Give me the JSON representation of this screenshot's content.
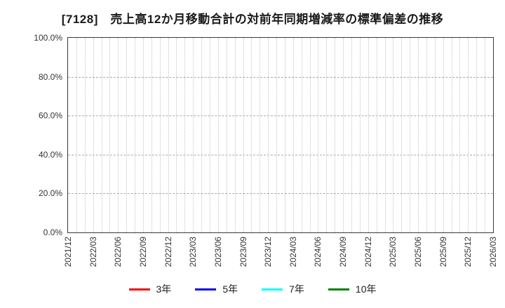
{
  "title": "[7128]　売上高12か月移動合計の対前年同期増減率の標準偏差の推移",
  "chart_data": {
    "type": "line",
    "title": "[7128]　売上高12か月移動合計の対前年同期増減率の標準偏差の推移",
    "x_tick_labels": [
      "2021/12",
      "2022/03",
      "2022/06",
      "2022/09",
      "2022/12",
      "2023/03",
      "2023/06",
      "2023/09",
      "2023/12",
      "2024/03",
      "2024/06",
      "2024/09",
      "2024/12",
      "2025/03",
      "2025/06",
      "2025/09",
      "2025/12",
      "2026/03"
    ],
    "x_range_months": 51,
    "x_label_every_months": 3,
    "x_minor_grid": "monthly",
    "y_tick_labels": [
      "0.0%",
      "20.0%",
      "40.0%",
      "60.0%",
      "80.0%",
      "100.0%"
    ],
    "y_tick_values": [
      0,
      20,
      40,
      60,
      80,
      100
    ],
    "ylim": [
      0,
      100
    ],
    "grid": true,
    "legend_position": "bottom",
    "series": [
      {
        "name": "3年",
        "color": "#ff0000",
        "values": []
      },
      {
        "name": "5年",
        "color": "#0000ff",
        "values": []
      },
      {
        "name": "7年",
        "color": "#00ffff",
        "values": []
      },
      {
        "name": "10年",
        "color": "#008000",
        "values": []
      }
    ],
    "plot_empty": true
  },
  "colors": {
    "background": "#ffffff",
    "plot_border": "#3a3a3a",
    "grid_vertical": "#c4c4c4",
    "grid_horizontal": "#ababab",
    "tick_text": "#333333",
    "title_text": "#1a1a1a"
  }
}
